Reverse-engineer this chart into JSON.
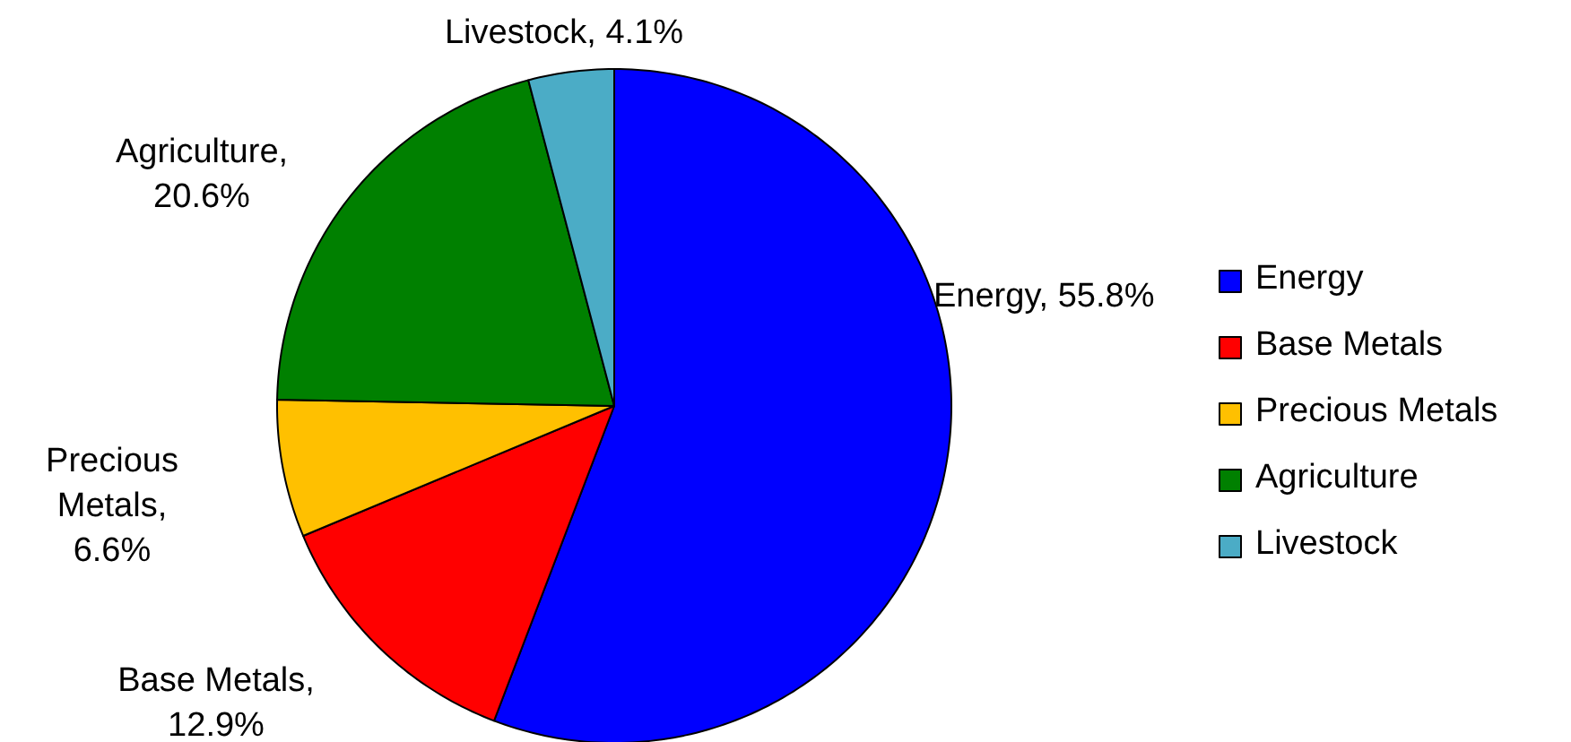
{
  "chart_data": {
    "type": "pie",
    "categories": [
      "Energy",
      "Base Metals",
      "Precious Metals",
      "Agriculture",
      "Livestock"
    ],
    "values": [
      55.8,
      12.9,
      6.6,
      20.6,
      4.1
    ],
    "colors": [
      "#0000ff",
      "#ff0000",
      "#ffc000",
      "#008000",
      "#4bacc6"
    ],
    "value_labels": [
      "Energy, 55.8%",
      "Base Metals,\n12.9%",
      "Precious\nMetals,\n6.6%",
      "Agriculture,\n20.6%",
      "Livestock, 4.1%"
    ],
    "legend": "right"
  }
}
